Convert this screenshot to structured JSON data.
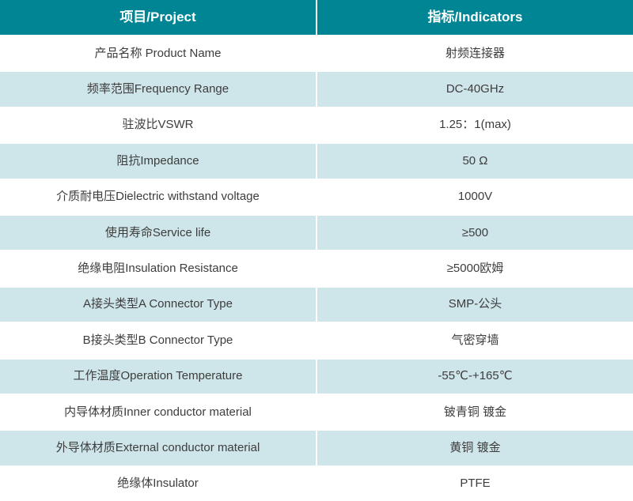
{
  "table": {
    "header": {
      "project_label": "项目/Project",
      "indicators_label": "指标/Indicators"
    },
    "rows": [
      {
        "project": "产品名称 Product Name",
        "indicator": "射频连接器"
      },
      {
        "project": "频率范围Frequency Range",
        "indicator": "DC-40GHz"
      },
      {
        "project": "驻波比VSWR",
        "indicator": "1.25：1(max)"
      },
      {
        "project": "阻抗Impedance",
        "indicator": "50 Ω"
      },
      {
        "project": "介质耐电压Dielectric withstand voltage",
        "indicator": "1000V"
      },
      {
        "project": "使用寿命Service life",
        "indicator": "≥500"
      },
      {
        "project": "绝缘电阻Insulation Resistance",
        "indicator": "≥5000欧姆"
      },
      {
        "project": "A接头类型A Connector Type",
        "indicator": "SMP-公头"
      },
      {
        "project": "B接头类型B Connector Type",
        "indicator": "气密穿墙"
      },
      {
        "project": "工作温度Operation Temperature",
        "indicator": "-55℃-+165℃"
      },
      {
        "project": "内导体材质Inner conductor material",
        "indicator": "铍青铜 镀金"
      },
      {
        "project": "外导体材质External conductor material",
        "indicator": "黄铜 镀金"
      },
      {
        "project": "绝缘体Insulator",
        "indicator": "PTFE"
      }
    ],
    "colors": {
      "header_bg": "#008594",
      "header_text": "#ffffff",
      "row_alt_bg": "#cee5ea",
      "row_bg": "#ffffff",
      "body_text": "#3d3d3d"
    }
  }
}
